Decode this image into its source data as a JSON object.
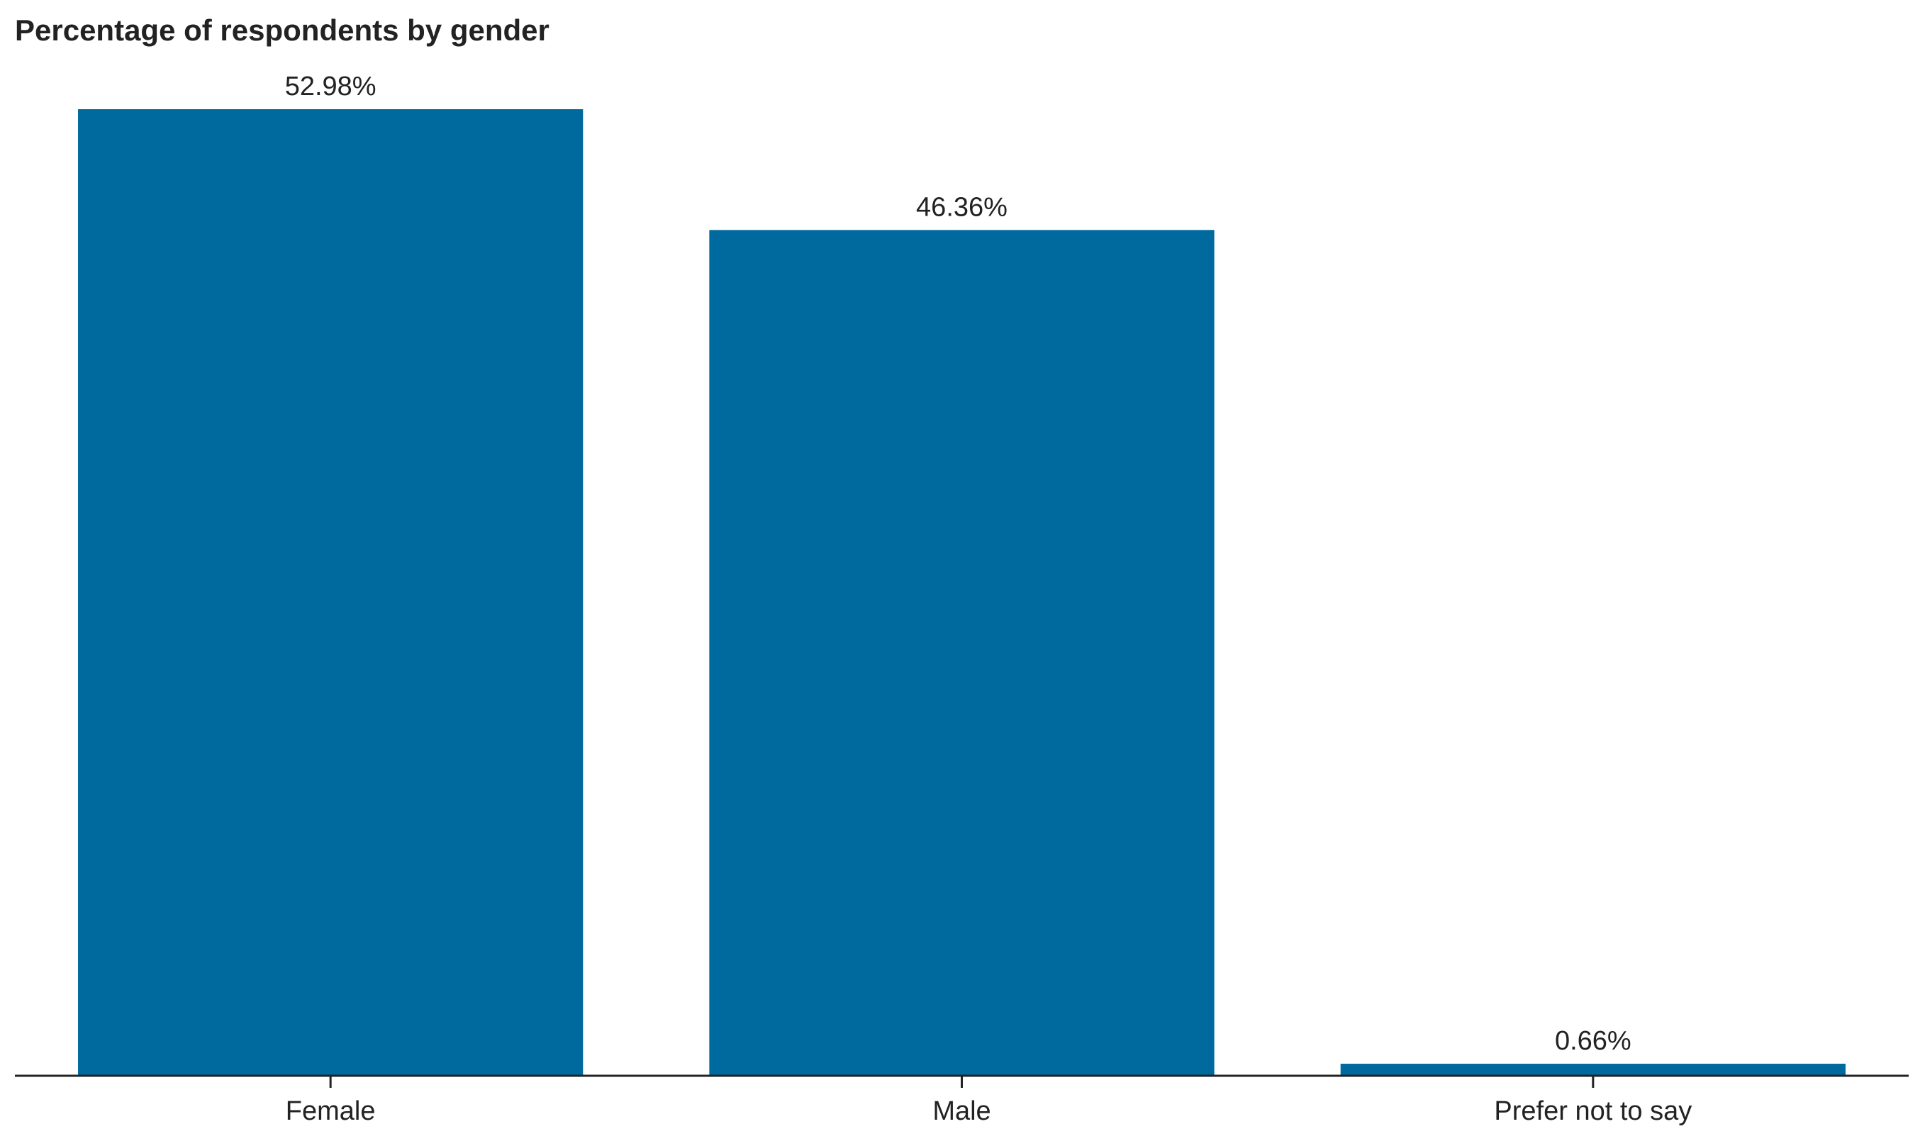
{
  "chart_data": {
    "type": "bar",
    "title": "Percentage of respondents by gender",
    "categories": [
      "Female",
      "Male",
      "Prefer not to say"
    ],
    "values": [
      52.98,
      46.36,
      0.66
    ],
    "value_labels": [
      "52.98%",
      "46.36%",
      "0.66%"
    ],
    "color": "#006a9e"
  }
}
